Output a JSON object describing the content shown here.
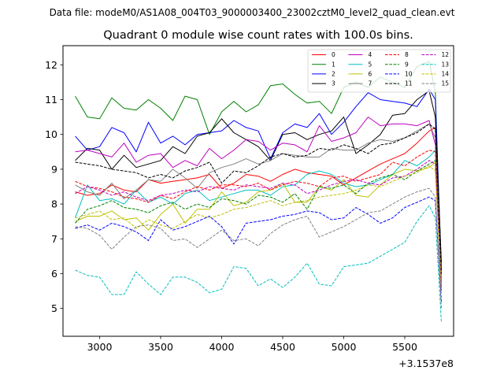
{
  "chart_data": {
    "type": "line",
    "suptitle": "Data file: modeM0/AS1A08_004T03_9000003400_23002cztM0_level2_quad_clean.evt",
    "title": "Quadrant 0 module wise count rates with 100.0s bins.",
    "xlabel": "",
    "ylabel": "",
    "x_offset_label": "+3.1537e8",
    "xlim": [
      2700,
      5900
    ],
    "ylim": [
      4.2,
      12.55
    ],
    "xticks": [
      3000,
      3500,
      4000,
      4500,
      5000,
      5500
    ],
    "xtick_labels": [
      "3000",
      "3500",
      "4000",
      "4500",
      "5000",
      "5500"
    ],
    "yticks": [
      5,
      6,
      7,
      8,
      9,
      10,
      11,
      12
    ],
    "ytick_labels": [
      "5",
      "6",
      "7",
      "8",
      "9",
      "10",
      "11",
      "12"
    ],
    "grid": false,
    "legend_placement": "upper right",
    "x": [
      2800,
      2900,
      3000,
      3100,
      3200,
      3300,
      3400,
      3500,
      3600,
      3700,
      3800,
      3900,
      4000,
      4100,
      4200,
      4300,
      4400,
      4500,
      4600,
      4700,
      4800,
      4900,
      5000,
      5100,
      5200,
      5300,
      5400,
      5500,
      5600,
      5700,
      5750,
      5800
    ],
    "series": [
      {
        "name": "0",
        "color": "#ff0000",
        "dash": "solid",
        "values": [
          8.35,
          8.25,
          8.3,
          8.55,
          8.4,
          8.35,
          8.7,
          8.6,
          8.65,
          8.7,
          8.75,
          8.85,
          8.45,
          8.6,
          8.85,
          8.8,
          8.65,
          8.85,
          9.0,
          8.9,
          8.85,
          8.8,
          8.55,
          8.75,
          8.95,
          9.15,
          9.3,
          9.45,
          9.75,
          10.1,
          10.2,
          5.6
        ]
      },
      {
        "name": "1",
        "color": "#008000",
        "dash": "solid",
        "values": [
          11.1,
          10.5,
          10.45,
          11.05,
          10.75,
          10.7,
          11.0,
          10.75,
          10.4,
          11.1,
          11.0,
          10.0,
          10.65,
          10.95,
          10.65,
          10.85,
          11.4,
          11.45,
          11.15,
          10.9,
          10.95,
          10.6,
          11.35,
          11.5,
          11.35,
          11.65,
          11.5,
          11.35,
          11.95,
          12.1,
          11.2,
          6.0
        ]
      },
      {
        "name": "2",
        "color": "#0000ff",
        "dash": "solid",
        "values": [
          9.95,
          9.55,
          9.65,
          10.2,
          10.05,
          9.5,
          10.35,
          9.75,
          9.95,
          9.7,
          10.0,
          10.05,
          10.1,
          10.4,
          10.2,
          10.1,
          9.3,
          10.05,
          10.3,
          10.2,
          10.6,
          10.0,
          10.35,
          10.8,
          11.2,
          11.0,
          10.95,
          10.9,
          10.8,
          11.3,
          11.0,
          6.1
        ]
      },
      {
        "name": "3",
        "color": "#000000",
        "dash": "solid",
        "values": [
          9.25,
          9.6,
          9.55,
          9.0,
          9.4,
          9.05,
          9.15,
          9.25,
          9.65,
          9.45,
          9.95,
          10.05,
          10.45,
          10.05,
          9.85,
          9.65,
          9.25,
          10.0,
          10.05,
          9.85,
          10.0,
          10.1,
          10.5,
          9.45,
          9.7,
          10.0,
          10.55,
          10.6,
          11.0,
          11.25,
          10.5,
          6.3
        ]
      },
      {
        "name": "4",
        "color": "#bf00bf",
        "dash": "solid",
        "values": [
          9.5,
          9.55,
          9.45,
          9.35,
          9.75,
          9.2,
          9.4,
          9.45,
          9.05,
          9.25,
          9.1,
          9.6,
          9.3,
          9.55,
          9.85,
          9.8,
          9.55,
          9.75,
          9.7,
          9.5,
          10.25,
          9.8,
          9.9,
          10.05,
          10.5,
          10.25,
          10.3,
          10.3,
          10.25,
          10.4,
          9.7,
          5.8
        ]
      },
      {
        "name": "5",
        "color": "#00bfbf",
        "dash": "solid",
        "values": [
          7.6,
          8.55,
          8.1,
          8.15,
          8.0,
          8.4,
          8.05,
          8.2,
          8.0,
          8.3,
          8.4,
          8.1,
          8.2,
          8.3,
          8.4,
          8.4,
          8.25,
          8.5,
          8.55,
          8.85,
          8.95,
          8.85,
          8.6,
          8.5,
          8.55,
          8.7,
          8.85,
          9.25,
          9.1,
          9.35,
          9.55,
          5.7
        ]
      },
      {
        "name": "6",
        "color": "#bfbf00",
        "dash": "solid",
        "values": [
          7.5,
          7.65,
          7.65,
          7.8,
          7.55,
          7.6,
          7.25,
          7.7,
          8.0,
          7.45,
          7.85,
          7.85,
          8.35,
          7.95,
          8.05,
          8.35,
          8.4,
          8.6,
          8.05,
          8.05,
          8.5,
          8.4,
          8.7,
          8.25,
          8.2,
          8.55,
          8.85,
          9.0,
          8.95,
          9.05,
          9.2,
          5.6
        ]
      },
      {
        "name": "7",
        "color": "#808080",
        "dash": "solid",
        "values": [
          8.55,
          8.35,
          8.25,
          8.6,
          8.15,
          8.4,
          8.7,
          8.65,
          9.0,
          8.75,
          8.45,
          8.9,
          9.05,
          9.15,
          9.3,
          9.15,
          9.25,
          9.45,
          9.4,
          9.35,
          9.35,
          9.6,
          9.55,
          9.55,
          9.75,
          9.85,
          9.8,
          9.9,
          10.1,
          10.3,
          9.9,
          5.9
        ]
      },
      {
        "name": "8",
        "color": "#ff0000",
        "dash": "dashed",
        "values": [
          8.65,
          8.5,
          8.45,
          8.35,
          8.2,
          8.15,
          8.05,
          8.25,
          8.15,
          8.35,
          8.5,
          8.4,
          8.55,
          8.55,
          8.5,
          8.6,
          8.4,
          8.55,
          8.65,
          8.6,
          8.5,
          8.75,
          8.8,
          8.65,
          8.75,
          8.85,
          9.2,
          9.1,
          9.35,
          9.55,
          9.5,
          5.5
        ]
      },
      {
        "name": "9",
        "color": "#008000",
        "dash": "dashed",
        "values": [
          7.45,
          7.85,
          7.95,
          8.1,
          7.9,
          7.85,
          7.75,
          7.95,
          8.05,
          7.85,
          8.0,
          7.9,
          8.15,
          8.1,
          8.0,
          8.25,
          8.2,
          8.05,
          8.3,
          7.85,
          8.5,
          8.45,
          8.55,
          8.3,
          8.6,
          8.75,
          8.85,
          8.7,
          8.95,
          9.15,
          9.25,
          5.6
        ]
      },
      {
        "name": "10",
        "color": "#0000ff",
        "dash": "dashed",
        "values": [
          7.3,
          7.4,
          7.25,
          7.45,
          7.35,
          7.2,
          6.95,
          7.55,
          7.25,
          7.35,
          7.5,
          7.65,
          7.35,
          6.85,
          7.45,
          7.5,
          7.55,
          7.65,
          7.7,
          7.8,
          7.75,
          7.55,
          7.6,
          7.9,
          7.7,
          7.45,
          7.6,
          7.9,
          8.05,
          8.2,
          8.1,
          5.2
        ]
      },
      {
        "name": "11",
        "color": "#000000",
        "dash": "dashed",
        "values": [
          9.2,
          9.15,
          9.1,
          9.0,
          8.95,
          8.9,
          8.75,
          8.85,
          8.75,
          8.95,
          9.05,
          9.2,
          8.6,
          8.95,
          8.9,
          9.1,
          9.35,
          9.45,
          9.35,
          9.4,
          9.6,
          9.55,
          9.7,
          9.6,
          9.45,
          9.7,
          9.75,
          9.9,
          10.05,
          10.3,
          10.15,
          6.0
        ]
      },
      {
        "name": "12",
        "color": "#bf00bf",
        "dash": "dashed",
        "values": [
          8.3,
          8.5,
          8.4,
          8.25,
          8.35,
          8.2,
          8.1,
          8.25,
          8.3,
          8.4,
          8.35,
          8.5,
          8.45,
          8.4,
          8.55,
          8.5,
          8.45,
          8.6,
          8.55,
          8.3,
          8.4,
          8.55,
          8.65,
          8.7,
          8.6,
          8.55,
          8.75,
          8.8,
          9.0,
          9.25,
          9.15,
          5.5
        ]
      },
      {
        "name": "13",
        "color": "#00bfbf",
        "dash": "dashed",
        "values": [
          6.1,
          5.95,
          5.9,
          5.4,
          5.4,
          6.05,
          5.7,
          5.4,
          5.9,
          5.9,
          5.75,
          5.45,
          5.55,
          6.2,
          6.15,
          5.65,
          5.85,
          5.6,
          5.9,
          6.3,
          5.7,
          5.65,
          6.2,
          6.25,
          6.3,
          6.5,
          6.7,
          6.9,
          7.5,
          7.95,
          7.6,
          4.6
        ]
      },
      {
        "name": "14",
        "color": "#bfbf00",
        "dash": "dashed",
        "values": [
          7.6,
          7.7,
          7.8,
          7.55,
          7.6,
          7.3,
          7.55,
          7.4,
          7.3,
          7.5,
          7.7,
          7.6,
          7.7,
          7.85,
          7.9,
          8.0,
          8.1,
          7.95,
          8.05,
          8.1,
          8.2,
          8.25,
          8.3,
          8.4,
          8.55,
          8.5,
          8.65,
          8.8,
          8.9,
          9.1,
          8.95,
          5.5
        ]
      },
      {
        "name": "15",
        "color": "#808080",
        "dash": "dashed",
        "values": [
          7.35,
          7.3,
          7.1,
          6.7,
          7.05,
          7.35,
          7.4,
          7.3,
          6.95,
          7.0,
          6.75,
          7.0,
          7.25,
          6.95,
          7.0,
          6.8,
          7.15,
          7.4,
          7.55,
          7.65,
          7.05,
          7.2,
          7.35,
          7.55,
          7.75,
          7.8,
          8.0,
          8.2,
          8.35,
          8.45,
          8.2,
          5.0
        ]
      }
    ]
  }
}
